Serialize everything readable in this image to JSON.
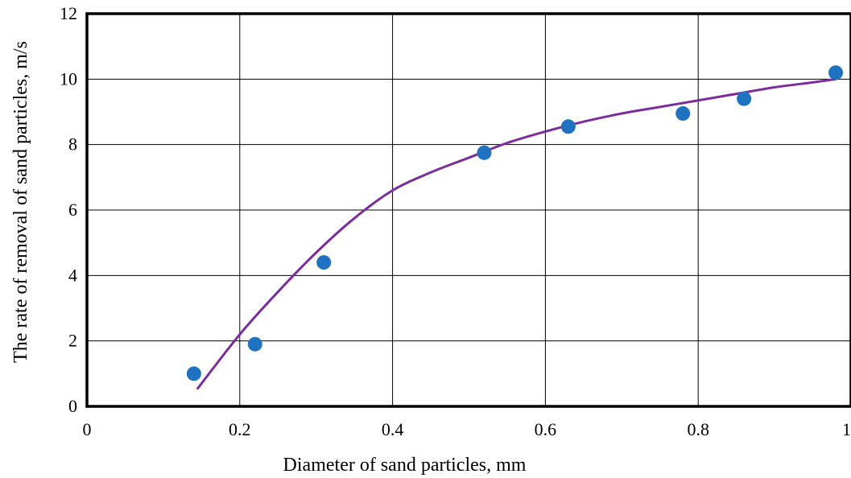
{
  "chart_data": {
    "type": "scatter",
    "title": "",
    "xlabel": "Diameter of sand particles,  mm",
    "ylabel": "The rate of removal of sand particles, m/s",
    "xlim": [
      0,
      1
    ],
    "ylim": [
      0,
      12
    ],
    "x_ticks": [
      0,
      0.2,
      0.4,
      0.6,
      0.8,
      1
    ],
    "x_tick_labels": [
      "0",
      "0.2",
      "0.4",
      "0.6",
      "0.8",
      "1"
    ],
    "y_ticks": [
      0,
      2,
      4,
      6,
      8,
      10,
      12
    ],
    "y_tick_labels": [
      "0",
      "2",
      "4",
      "6",
      "8",
      "10",
      "12"
    ],
    "grid": true,
    "legend": "none",
    "series": [
      {
        "x": [
          0.14,
          0.22,
          0.31,
          0.52,
          0.63,
          0.78,
          0.86,
          0.98
        ],
        "y": [
          1.0,
          1.9,
          4.4,
          7.75,
          8.55,
          8.95,
          9.4,
          10.2
        ],
        "color": "#1f72c0",
        "style": "markers"
      }
    ],
    "trendline": {
      "x": [
        0.145,
        0.2,
        0.25,
        0.3,
        0.35,
        0.4,
        0.45,
        0.5,
        0.55,
        0.6,
        0.65,
        0.7,
        0.75,
        0.8,
        0.85,
        0.9,
        0.95,
        0.98
      ],
      "y": [
        0.55,
        2.2,
        3.5,
        4.7,
        5.75,
        6.6,
        7.15,
        7.6,
        8.05,
        8.4,
        8.7,
        8.95,
        9.15,
        9.35,
        9.55,
        9.75,
        9.9,
        10.0
      ],
      "color": "#7b2d9c",
      "style": "smooth-line"
    }
  }
}
